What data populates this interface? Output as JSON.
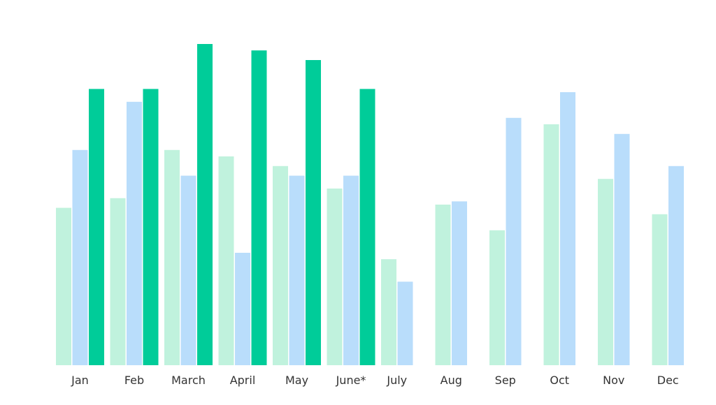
{
  "chart_data": {
    "type": "bar",
    "title": "",
    "xlabel": "",
    "ylabel": "",
    "grid": false,
    "legend": "none",
    "ylim": [
      0,
      100
    ],
    "categories": [
      "Jan",
      "Feb",
      "March",
      "April",
      "May",
      "June*",
      "July",
      "Aug",
      "Sep",
      "Oct",
      "Nov",
      "Dec"
    ],
    "series": [
      {
        "color": "#c0f2dd",
        "values": [
          49,
          52,
          67,
          65,
          62,
          55,
          33,
          50,
          42,
          75,
          58,
          47
        ]
      },
      {
        "color": "#b9ddfb",
        "values": [
          67,
          82,
          59,
          35,
          59,
          59,
          26,
          51,
          77,
          85,
          72,
          62
        ]
      },
      {
        "color": "#00cc99",
        "values": [
          86,
          86,
          100,
          98,
          95,
          86,
          null,
          null,
          null,
          null,
          null,
          null
        ]
      }
    ]
  }
}
